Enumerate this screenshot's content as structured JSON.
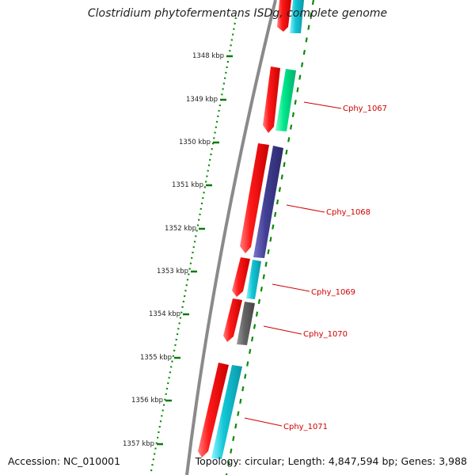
{
  "title": "Clostridium phytofermentans ISDg, complete genome",
  "accession": "Accession: NC_010001",
  "topology": "Topology: circular; Length: 4,847,594 bp; Genes: 3,988",
  "scale_ticks": [
    "1348 kbp",
    "1349 kbp",
    "1350 kbp",
    "1351 kbp",
    "1352 kbp",
    "1353 kbp",
    "1354 kbp",
    "1355 kbp",
    "1356 kbp",
    "1357 kbp"
  ],
  "gene_labels": [
    "Cphy_1067",
    "Cphy_1068",
    "Cphy_1069",
    "Cphy_1070",
    "Cphy_1071"
  ],
  "colors": {
    "cds": "#e8000b",
    "cog_teal": "#00e08a",
    "cog_purple": "#3d3a8c",
    "cog_cyan": "#1ec8d8",
    "cog_gray": "#666666",
    "backbone": "#8a8a8a",
    "tick": "#0a7a0a",
    "label": "#d00000"
  }
}
